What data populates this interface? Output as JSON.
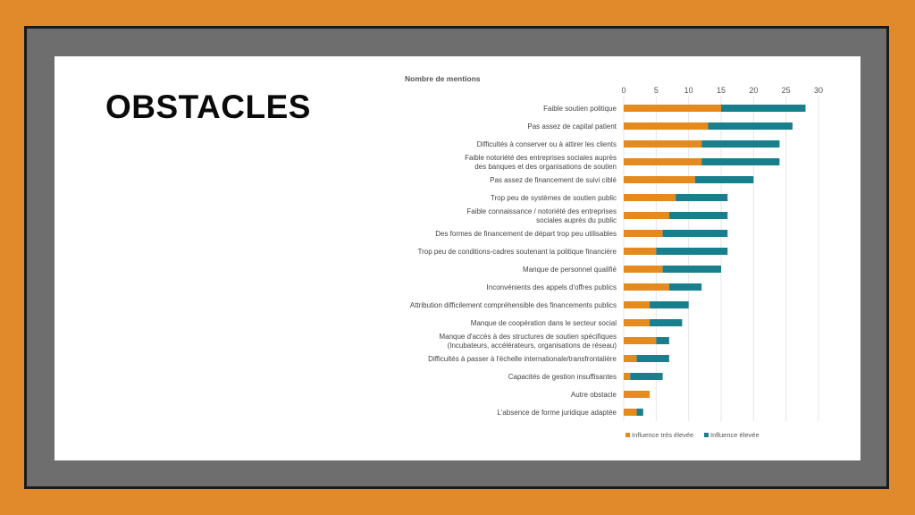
{
  "slide": {
    "title": "OBSTACLES"
  },
  "chart_data": {
    "type": "bar",
    "orientation": "horizontal",
    "stacked": true,
    "xlabel": "Nombre de mentions",
    "xlim": [
      0,
      30
    ],
    "xticks": [
      0,
      5,
      10,
      15,
      20,
      25,
      30
    ],
    "grid": true,
    "legend_position": "bottom",
    "categories": [
      [
        "Faible soutien politique"
      ],
      [
        "Pas assez de capital patient"
      ],
      [
        "Difficultés à conserver ou à attirer les clients"
      ],
      [
        "Faible notoriété des entreprises sociales auprès",
        "des banques et des organisations de soutien"
      ],
      [
        "Pas assez de financement de suivi ciblé"
      ],
      [
        "Trop peu de systèmes de soutien public"
      ],
      [
        "Faible connaissance / notoriété des entreprises",
        "sociales auprès du public"
      ],
      [
        "Des formes de financement de départ trop peu utilisables"
      ],
      [
        "Trop peu de conditions-cadres soutenant la politique financière"
      ],
      [
        "Manque de personnel qualifié"
      ],
      [
        "Inconvénients des appels d'offres publics"
      ],
      [
        "Attribution difficilement compréhensible des financements publics"
      ],
      [
        "Manque de coopération dans le secteur social"
      ],
      [
        "Manque d'accès à des structures de soutien spécifiques",
        "(Incubateurs, accélérateurs, organisations de réseau)"
      ],
      [
        "Difficultés à passer à l'échelle internationale/transfrontalière"
      ],
      [
        "Capacités de gestion insuffisantes"
      ],
      [
        "Autre obstacle"
      ],
      [
        "L'absence de forme juridique adaptée"
      ]
    ],
    "series": [
      {
        "name": "Influence très élevée",
        "color": "#e48a1e",
        "values": [
          15,
          13,
          12,
          12,
          11,
          8,
          7,
          6,
          5,
          6,
          7,
          4,
          4,
          5,
          2,
          1,
          4,
          2
        ]
      },
      {
        "name": "Influence élevée",
        "color": "#1a7f8c",
        "values": [
          13,
          13,
          12,
          12,
          9,
          8,
          9,
          10,
          11,
          9,
          5,
          6,
          5,
          2,
          5,
          5,
          0,
          1
        ]
      }
    ]
  }
}
